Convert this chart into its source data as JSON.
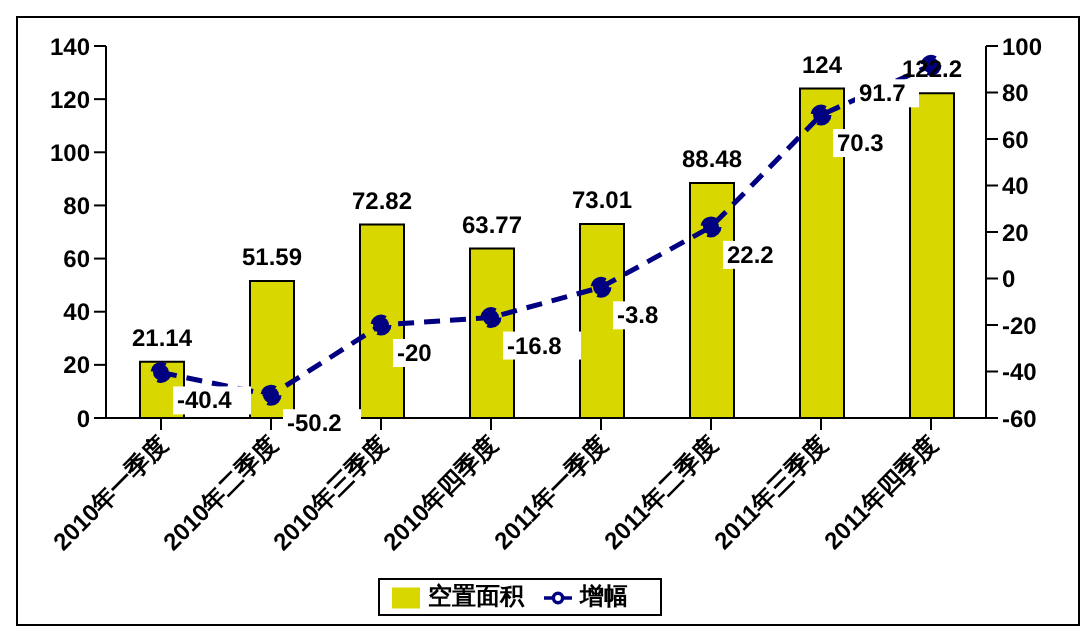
{
  "chart_data": {
    "type": "bar",
    "categories": [
      "2010年一季度",
      "2010年二季度",
      "2010年三季度",
      "2010年四季度",
      "2011年一季度",
      "2011年二季度",
      "2011年三季度",
      "2011年四季度"
    ],
    "series": [
      {
        "name": "空置面积",
        "color": "#d8d800",
        "values": [
          21.14,
          51.59,
          72.82,
          63.77,
          73.01,
          88.48,
          124,
          122.2
        ]
      },
      {
        "name": "增幅",
        "type": "line",
        "axis": "y2",
        "color": "#000080",
        "values": [
          -40.4,
          -50.2,
          -20,
          -16.8,
          -3.8,
          22.2,
          70.3,
          91.7
        ]
      }
    ],
    "ylim": [
      0,
      140
    ],
    "yticks": [
      0,
      20,
      40,
      60,
      80,
      100,
      120,
      140
    ],
    "y2lim": [
      -60,
      100
    ],
    "y2ticks": [
      -60,
      -40,
      -20,
      0,
      20,
      40,
      60,
      80,
      100
    ],
    "data_labels": true,
    "legend": "bottom",
    "marker": "circle",
    "line_style": "dashed"
  }
}
